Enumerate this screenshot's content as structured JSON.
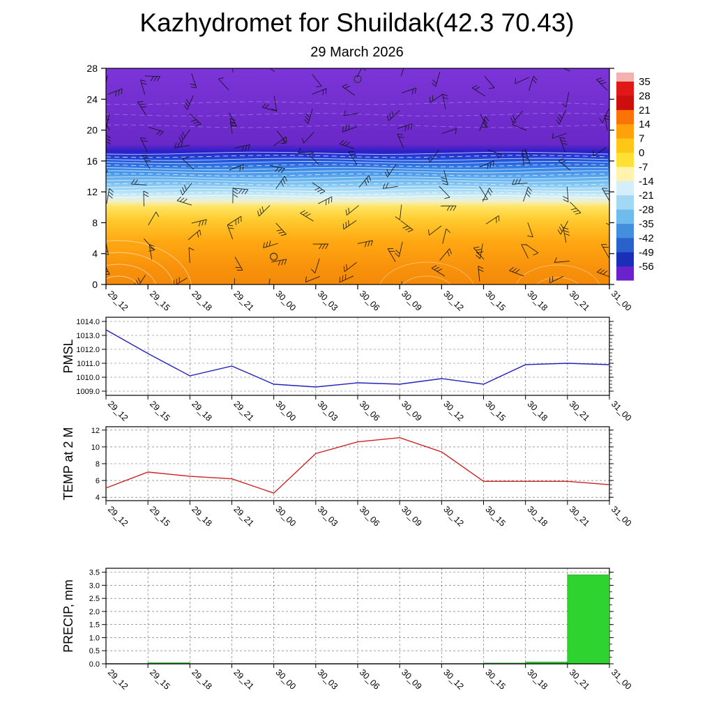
{
  "title": "Kazhydromet for Shuildak(42.3 70.43)",
  "subtitle": "29 March 2026",
  "time_labels": [
    "29_12",
    "29_15",
    "29_18",
    "29_21",
    "30_00",
    "30_03",
    "30_06",
    "30_09",
    "30_12",
    "30_15",
    "30_18",
    "30_21",
    "31_00"
  ],
  "colorbar": {
    "tick_labels": [
      "35",
      "28",
      "21",
      "14",
      "7",
      "0",
      "-7",
      "-14",
      "-21",
      "-28",
      "-35",
      "-42",
      "-49",
      "-56"
    ],
    "band_colors_top_to_bottom": [
      "#f2b2b0",
      "#e01818",
      "#cc0e0e",
      "#f97306",
      "#ffa10a",
      "#fec615",
      "#ffe135",
      "#fff3ae",
      "#d4eefb",
      "#a3d8f4",
      "#6dbcec",
      "#418fdd",
      "#2a62cc",
      "#1a2eb8",
      "#6a22cc"
    ]
  },
  "chart_data": [
    {
      "type": "heatmap",
      "name": "upper-air-cross-section",
      "description": "Time-height temperature cross-section with wind barbs and white contour lines",
      "categories": [
        "29_12",
        "29_15",
        "29_18",
        "29_21",
        "30_00",
        "30_03",
        "30_06",
        "30_09",
        "30_12",
        "30_15",
        "30_18",
        "30_21",
        "31_00"
      ],
      "ylim": [
        0,
        28
      ],
      "y_ticks": [
        0,
        4,
        8,
        12,
        16,
        20,
        24,
        28
      ],
      "y_tick_labels": [
        "0",
        "4",
        "8",
        "12",
        "16",
        "20",
        "24",
        "28"
      ],
      "gradient_stops": [
        [
          0.0,
          "#7c35d8"
        ],
        [
          0.35,
          "#6a28c8"
        ],
        [
          0.385,
          "#2a1fc8"
        ],
        [
          0.425,
          "#1f52dc"
        ],
        [
          0.47,
          "#3c8ce8"
        ],
        [
          0.52,
          "#6cb8f0"
        ],
        [
          0.56,
          "#a0d8f6"
        ],
        [
          0.59,
          "#cfeef8"
        ],
        [
          0.615,
          "#f0f0cc"
        ],
        [
          0.64,
          "#ffe462"
        ],
        [
          0.7,
          "#ffcb2f"
        ],
        [
          0.8,
          "#ffa812"
        ],
        [
          0.92,
          "#f8920c"
        ],
        [
          1.0,
          "#f38a08"
        ]
      ],
      "markers": [
        {
          "time_index": 4,
          "height_km": 3.6
        },
        {
          "time_index": 6,
          "height_km": 26.6
        }
      ]
    },
    {
      "type": "line",
      "name": "PMSL",
      "ylabel": "PMSL",
      "line_color": "#2222bb",
      "categories": [
        "29_12",
        "29_15",
        "29_18",
        "29_21",
        "30_00",
        "30_03",
        "30_06",
        "30_09",
        "30_12",
        "30_15",
        "30_18",
        "30_21",
        "31_00"
      ],
      "values": [
        1013.4,
        1011.7,
        1010.1,
        1010.8,
        1009.5,
        1009.3,
        1009.6,
        1009.5,
        1009.9,
        1009.5,
        1010.9,
        1011.0,
        1010.9
      ],
      "ylim": [
        1008.7,
        1014.3
      ],
      "y_ticks": [
        1009,
        1010,
        1011,
        1012,
        1013,
        1014
      ],
      "y_tick_labels": [
        "1009.0",
        "1010.0",
        "1011.0",
        "1012.0",
        "1013.0",
        "1014.0"
      ]
    },
    {
      "type": "line",
      "name": "TEMP at 2 M",
      "ylabel": "TEMP at 2 M",
      "line_color": "#cc2222",
      "categories": [
        "29_12",
        "29_15",
        "29_18",
        "29_21",
        "30_00",
        "30_03",
        "30_06",
        "30_09",
        "30_12",
        "30_15",
        "30_18",
        "30_21",
        "31_00"
      ],
      "values": [
        5.1,
        7.0,
        6.5,
        6.2,
        4.5,
        9.2,
        10.6,
        11.1,
        9.4,
        5.9,
        5.9,
        5.9,
        5.5
      ],
      "ylim": [
        3.6,
        12.4
      ],
      "y_ticks": [
        4,
        6,
        8,
        10,
        12
      ],
      "y_tick_labels": [
        "4",
        "6",
        "8",
        "10",
        "12"
      ]
    },
    {
      "type": "bar",
      "name": "PRECIP, mm",
      "ylabel": "PRECIP, mm",
      "bar_color": "#2fd32f",
      "categories": [
        "29_12",
        "29_15",
        "29_18",
        "29_21",
        "30_00",
        "30_03",
        "30_06",
        "30_09",
        "30_12",
        "30_15",
        "30_18",
        "30_21",
        "31_00"
      ],
      "values": [
        0,
        0,
        0.04,
        0,
        0,
        0,
        0,
        0,
        0,
        0,
        0.03,
        0.07,
        3.4
      ],
      "ylim": [
        0,
        3.65
      ],
      "y_ticks": [
        0,
        0.5,
        1,
        1.5,
        2,
        2.5,
        3,
        3.5
      ],
      "y_tick_labels": [
        "0.0",
        "0.5",
        "1.0",
        "1.5",
        "2.0",
        "2.5",
        "3.0",
        "3.5"
      ]
    }
  ]
}
